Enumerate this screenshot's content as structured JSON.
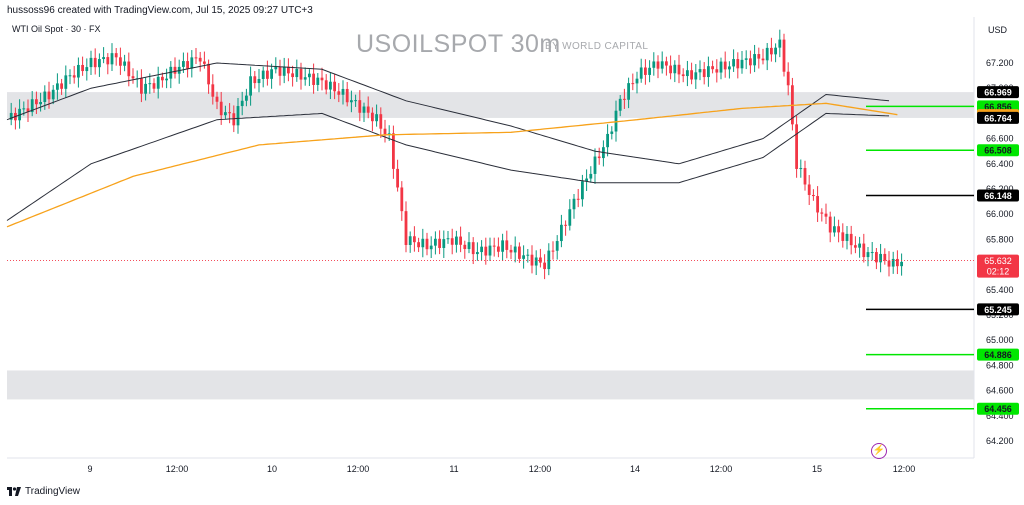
{
  "header": {
    "attribution": "hussoss96 created with TradingView.com, Jul 15, 2025 09:27 UTC+3",
    "symbol_line": "WTI Oil Spot · 30 · FX",
    "currency": "USD"
  },
  "watermark": {
    "title": "USOILSPOT 30m",
    "byline": "BY WORLD CAPITAL"
  },
  "footer": {
    "brand": "TradingView"
  },
  "icons": {
    "flash": "lightning-bolt-icon",
    "brand_logo": "tradingview-logo-icon"
  },
  "colors": {
    "up": "#089981",
    "down": "#f23645",
    "moving_average": "#f7a21b",
    "bands": "#2a2e39",
    "zone": "#e3e4e7",
    "resistance": "#000000",
    "support": "#00e600"
  },
  "chart_data": {
    "type": "candlestick",
    "ylim": [
      64.1,
      67.55
    ],
    "y_ticks": [
      64.2,
      64.4,
      64.6,
      64.8,
      65.0,
      65.2,
      65.4,
      65.6,
      65.8,
      66.0,
      66.2,
      66.4,
      66.6,
      66.8,
      67.0,
      67.2
    ],
    "x_ticks": [
      "9",
      "12:00",
      "10",
      "12:00",
      "11",
      "12:00",
      "14",
      "12:00",
      "15",
      "12:00"
    ],
    "last_price": {
      "value": 65.632,
      "label": "65.632",
      "countdown": "02:12"
    },
    "zones": [
      {
        "from": 66.764,
        "to": 66.969
      },
      {
        "from": 64.53,
        "to": 64.76
      }
    ],
    "levels": [
      {
        "value": 66.969,
        "label": "66.969",
        "kind": "zone-edge",
        "color": "#000000"
      },
      {
        "value": 66.856,
        "label": "66.856",
        "kind": "support",
        "color": "#00e600"
      },
      {
        "value": 66.786,
        "label": "66.786",
        "kind": "moving-average",
        "color": "#f7a21b"
      },
      {
        "value": 66.764,
        "label": "66.764",
        "kind": "zone-edge",
        "color": "#000000"
      },
      {
        "value": 66.508,
        "label": "66.508",
        "kind": "support",
        "color": "#00e600"
      },
      {
        "value": 66.148,
        "label": "66.148",
        "kind": "resistance",
        "color": "#000000"
      },
      {
        "value": 65.245,
        "label": "65.245",
        "kind": "resistance",
        "color": "#000000"
      },
      {
        "value": 64.886,
        "label": "64.886",
        "kind": "support",
        "color": "#00e600"
      },
      {
        "value": 64.456,
        "label": "64.456",
        "kind": "support",
        "color": "#00e600"
      }
    ],
    "price_path": [
      [
        0,
        66.75
      ],
      [
        5,
        66.85
      ],
      [
        10,
        66.95
      ],
      [
        15,
        67.1
      ],
      [
        20,
        67.2
      ],
      [
        26,
        67.25
      ],
      [
        32,
        67.0
      ],
      [
        36,
        67.05
      ],
      [
        40,
        67.15
      ],
      [
        46,
        67.25
      ],
      [
        50,
        66.85
      ],
      [
        54,
        66.75
      ],
      [
        58,
        67.05
      ],
      [
        64,
        67.15
      ],
      [
        70,
        67.1
      ],
      [
        75,
        67.05
      ],
      [
        80,
        66.95
      ],
      [
        84,
        66.85
      ],
      [
        88,
        66.75
      ],
      [
        91,
        66.6
      ],
      [
        93,
        66.2
      ],
      [
        95,
        65.8
      ],
      [
        100,
        65.75
      ],
      [
        106,
        65.8
      ],
      [
        112,
        65.7
      ],
      [
        118,
        65.75
      ],
      [
        124,
        65.65
      ],
      [
        128,
        65.6
      ],
      [
        131,
        65.8
      ],
      [
        135,
        66.1
      ],
      [
        139,
        66.35
      ],
      [
        143,
        66.6
      ],
      [
        146,
        66.9
      ],
      [
        150,
        67.1
      ],
      [
        155,
        67.2
      ],
      [
        162,
        67.1
      ],
      [
        168,
        67.15
      ],
      [
        174,
        67.2
      ],
      [
        180,
        67.25
      ],
      [
        184,
        67.35
      ],
      [
        186,
        67.0
      ],
      [
        188,
        66.4
      ],
      [
        192,
        66.1
      ],
      [
        196,
        65.9
      ],
      [
        200,
        65.8
      ],
      [
        204,
        65.7
      ],
      [
        208,
        65.65
      ],
      [
        211,
        65.6
      ],
      [
        213,
        65.63
      ]
    ],
    "bands": {
      "upper": [
        [
          0,
          66.75
        ],
        [
          20,
          67.0
        ],
        [
          50,
          67.2
        ],
        [
          75,
          67.15
        ],
        [
          95,
          66.9
        ],
        [
          120,
          66.7
        ],
        [
          140,
          66.5
        ],
        [
          160,
          66.4
        ],
        [
          180,
          66.6
        ],
        [
          195,
          66.95
        ],
        [
          210,
          66.9
        ]
      ],
      "lower": [
        [
          0,
          65.95
        ],
        [
          20,
          66.4
        ],
        [
          50,
          66.75
        ],
        [
          75,
          66.8
        ],
        [
          95,
          66.55
        ],
        [
          120,
          66.35
        ],
        [
          140,
          66.25
        ],
        [
          160,
          66.25
        ],
        [
          180,
          66.45
        ],
        [
          195,
          66.8
        ],
        [
          210,
          66.78
        ]
      ]
    },
    "moving_average": [
      [
        0,
        65.9
      ],
      [
        30,
        66.3
      ],
      [
        60,
        66.55
      ],
      [
        90,
        66.63
      ],
      [
        120,
        66.65
      ],
      [
        150,
        66.75
      ],
      [
        175,
        66.84
      ],
      [
        195,
        66.88
      ],
      [
        212,
        66.79
      ]
    ]
  }
}
